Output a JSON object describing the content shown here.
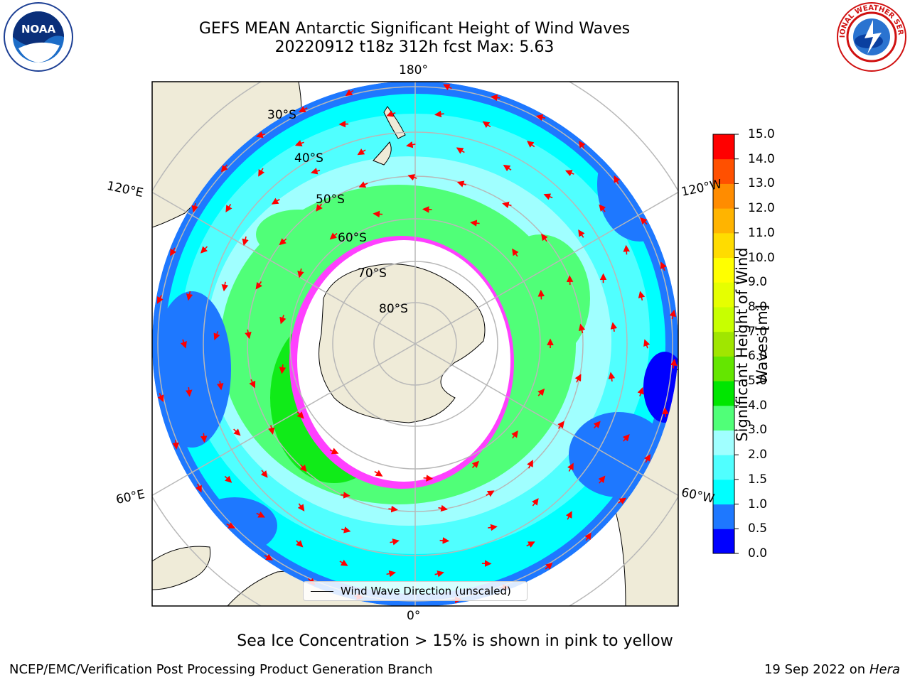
{
  "title": {
    "line1": "GEFS MEAN Antarctic Significant Height of Wind Waves",
    "line2": "20220912 t18z 312h fcst   Max: 5.63"
  },
  "logos": {
    "left": "NOAA",
    "right": "NATIONAL WEATHER SERVICE"
  },
  "map": {
    "projection": "south-polar-stereographic",
    "latitude_labels": [
      "30°S",
      "40°S",
      "50°S",
      "60°S",
      "70°S",
      "80°S"
    ],
    "longitude_labels": {
      "top": "180°",
      "bottom": "0°",
      "upper_left": "120°E",
      "upper_right": "120°W",
      "lower_left": "60°E",
      "lower_right": "60°W"
    },
    "max_value": 5.63,
    "ocean_no_data_color": "#ffffff",
    "land_color": "#efebd8",
    "grid_color": "#b8b8b8",
    "arrow_color": "#ff0000"
  },
  "legend": {
    "label": "Wind Wave Direction (unscaled)"
  },
  "colorbar": {
    "label": "Significant Height of Wind Waves [m]",
    "ticks": [
      "0.0",
      "0.5",
      "1.0",
      "1.5",
      "2.0",
      "3.0",
      "4.0",
      "5.0",
      "6.0",
      "7.0",
      "8.0",
      "9.0",
      "10.0",
      "11.0",
      "12.0",
      "13.0",
      "14.0",
      "15.0"
    ],
    "colors": [
      "#0000ff",
      "#1e78ff",
      "#00ffff",
      "#50ffff",
      "#a0ffff",
      "#50ff78",
      "#00e600",
      "#64e600",
      "#a0e600",
      "#c8ff00",
      "#e6ff00",
      "#ffff00",
      "#ffdc00",
      "#ffb400",
      "#ff8c00",
      "#ff5000",
      "#ff0000"
    ]
  },
  "footer": {
    "sea_ice_note": "Sea Ice Concentration > 15% is shown in pink to yellow",
    "credit": "NCEP/EMC/Verification Post Processing Product Generation Branch",
    "date": "19 Sep 2022 on",
    "machine": "Hera"
  }
}
